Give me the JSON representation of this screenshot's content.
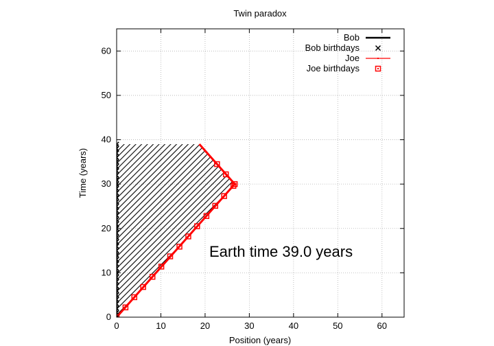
{
  "chart_data": {
    "type": "line",
    "title": "Twin paradox",
    "xlabel": "Position (years)",
    "ylabel": "Time (years)",
    "xlim": [
      0,
      65
    ],
    "ylim": [
      0,
      65
    ],
    "x_ticks": [
      0,
      10,
      20,
      30,
      40,
      50,
      60
    ],
    "y_ticks": [
      0,
      10,
      20,
      30,
      40,
      50,
      60
    ],
    "grid": true,
    "legend_position": "top-right",
    "annotation": "Earth time 39.0 years",
    "colors": {
      "bob": "#000000",
      "joe": "#ff0000",
      "grid": "#b0b0b0",
      "hatch": "#000000"
    },
    "series": [
      {
        "name": "Bob",
        "style": "line",
        "x": [
          0,
          0
        ],
        "y": [
          0,
          39
        ]
      },
      {
        "name": "Bob birthdays",
        "style": "x-markers",
        "x": [
          0,
          0,
          0,
          0,
          0,
          0,
          0,
          0,
          0,
          0,
          0,
          0,
          0,
          0,
          0,
          0,
          0,
          0,
          0,
          0,
          0,
          0,
          0,
          0,
          0,
          0,
          0,
          0,
          0,
          0,
          0,
          0,
          0,
          0,
          0,
          0,
          0,
          0,
          0,
          0
        ],
        "y": [
          0,
          1,
          2,
          3,
          4,
          5,
          6,
          7,
          8,
          9,
          10,
          11,
          12,
          13,
          14,
          15,
          16,
          17,
          18,
          19,
          20,
          21,
          22,
          23,
          24,
          25,
          26,
          27,
          28,
          29,
          30,
          31,
          32,
          33,
          34,
          35,
          36,
          37,
          38,
          39
        ]
      },
      {
        "name": "Joe",
        "style": "line",
        "x": [
          0,
          26.7,
          18.7
        ],
        "y": [
          0,
          30,
          39
        ]
      },
      {
        "name": "Joe birthdays",
        "style": "square-markers",
        "x": [
          0,
          2.0,
          4.0,
          6.0,
          8.1,
          10.1,
          12.1,
          14.2,
          16.2,
          18.2,
          20.3,
          22.3,
          24.3,
          26.4,
          26.7,
          24.7,
          22.7
        ],
        "y": [
          0,
          2.2,
          4.5,
          6.8,
          9.1,
          11.4,
          13.7,
          15.9,
          18.2,
          20.5,
          22.8,
          25.1,
          27.3,
          29.6,
          30,
          32.2,
          34.5
        ]
      }
    ]
  }
}
